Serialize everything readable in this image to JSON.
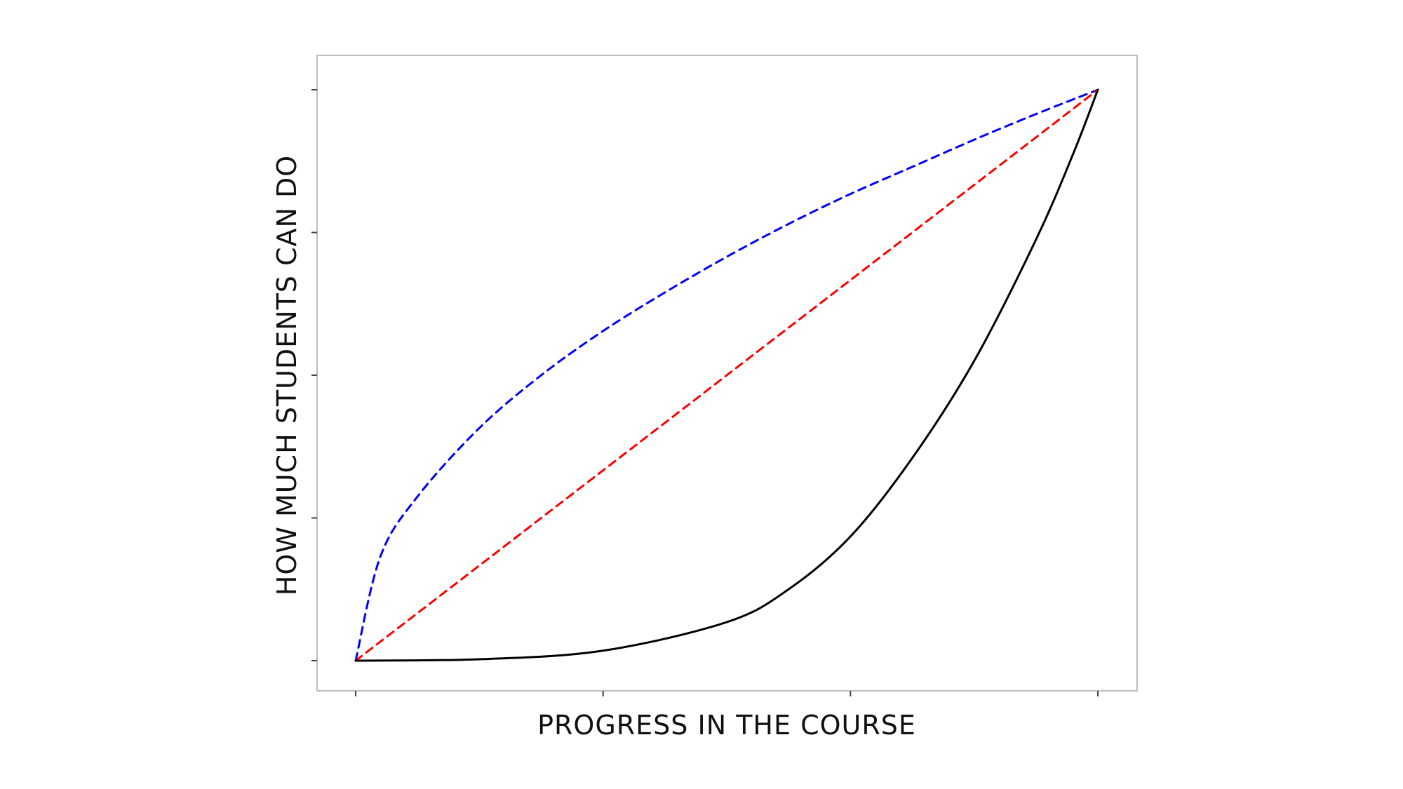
{
  "chart_data": {
    "type": "line",
    "xlabel": "PROGRESS IN THE COURSE",
    "ylabel": "HOW MUCH STUDENTS CAN DO",
    "xlim": [
      0,
      3
    ],
    "ylim": [
      0,
      4
    ],
    "x_ticks": [
      0,
      1,
      2,
      3
    ],
    "y_ticks": [
      0,
      1,
      2,
      3,
      4
    ],
    "tick_labels_shown": false,
    "grid": false,
    "legend": "none",
    "series": [
      {
        "color": "#0000ff",
        "style": "dashed",
        "x": [
          0,
          0.1,
          0.25,
          0.5,
          0.75,
          1.0,
          1.25,
          1.5,
          1.75,
          2.0,
          2.25,
          2.5,
          2.75,
          3.0
        ],
        "y": [
          0,
          0.73,
          1.15,
          1.63,
          2.0,
          2.31,
          2.58,
          2.83,
          3.06,
          3.27,
          3.46,
          3.65,
          3.83,
          4.0
        ]
      },
      {
        "color": "#ff0000",
        "style": "dashed",
        "x": [
          0,
          3
        ],
        "y": [
          0,
          4
        ]
      },
      {
        "color": "#000000",
        "style": "solid",
        "x": [
          0,
          0.5,
          1.0,
          1.5,
          1.75,
          2.0,
          2.25,
          2.5,
          2.75,
          2.9,
          3.0
        ],
        "y": [
          0,
          0.01,
          0.07,
          0.27,
          0.5,
          0.87,
          1.42,
          2.1,
          2.95,
          3.55,
          4.0
        ]
      }
    ]
  }
}
